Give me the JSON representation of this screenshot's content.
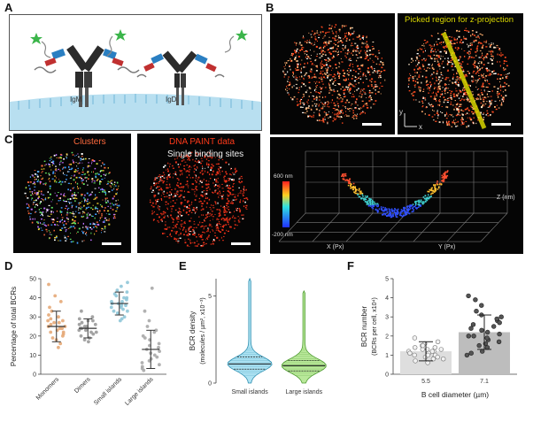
{
  "panels": {
    "a": {
      "letter": "A",
      "labels": {
        "igm": "IgM",
        "igd": "IgD"
      }
    },
    "b": {
      "letter": "B",
      "annotation": "Picked region for z-projection",
      "axes_2d": {
        "y": "y",
        "x": "x"
      },
      "plot3d": {
        "colorbar_top": "600 nm",
        "colorbar_bottom": "-200 nm",
        "z_label": "Z (nm)",
        "x_label": "X (Px)",
        "y_label": "Y (Px)"
      }
    },
    "c": {
      "letter": "C",
      "label_clusters": "Clusters",
      "label_dna": "DNA PAINT data",
      "label_single": "Single binding sites"
    },
    "d": {
      "letter": "D"
    },
    "e": {
      "letter": "E"
    },
    "f": {
      "letter": "F"
    }
  },
  "colors": {
    "orange_dot": "#f0903a",
    "hot_red": "#ff3a1a",
    "yellow_line": "#d8d600",
    "violin_blue": "#aee3f3",
    "violin_green": "#b9e89a",
    "bar_grey": "#c8c8c8"
  },
  "chart_data": [
    {
      "id": "D",
      "type": "scatter",
      "ylabel": "Percentage of total BCRs",
      "ylim": [
        0,
        50
      ],
      "yticks": [
        "0",
        "10",
        "20",
        "30",
        "40",
        "50"
      ],
      "categories": [
        "Monomers",
        "Dimers",
        "Small islands",
        "Large islands"
      ],
      "point_colors": [
        "#e6a877",
        "#9a9a9a",
        "#8fc6d8",
        "#a9a9a9"
      ],
      "means": [
        25,
        24,
        37,
        13
      ],
      "sds": [
        8,
        5,
        6,
        10
      ],
      "points": [
        [
          30,
          28,
          25,
          22,
          35,
          18,
          27,
          24,
          41,
          19,
          23,
          29,
          33,
          16,
          26,
          21,
          38,
          28,
          24,
          47,
          14,
          25,
          31,
          20,
          27,
          22
        ],
        [
          26,
          24,
          21,
          28,
          19,
          23,
          30,
          25,
          18,
          27,
          22,
          29,
          24,
          20,
          26,
          33,
          23,
          25,
          17,
          28,
          22
        ],
        [
          40,
          36,
          33,
          42,
          38,
          30,
          44,
          35,
          39,
          46,
          37,
          34,
          41,
          28,
          36,
          48,
          32,
          38,
          43,
          35,
          37,
          29,
          40,
          33
        ],
        [
          8,
          15,
          22,
          5,
          12,
          28,
          18,
          3,
          10,
          25,
          14,
          20,
          6,
          33,
          9,
          16,
          2,
          11,
          45,
          19,
          7,
          13,
          23,
          4
        ]
      ]
    },
    {
      "id": "E",
      "type": "violin",
      "ylabel": "BCR density",
      "ylabel2": "(molecules / µm², x10⁻³)",
      "ylim": [
        0,
        6
      ],
      "yticks": [
        "0",
        "5"
      ],
      "categories": [
        "Small islands",
        "Large islands"
      ],
      "medians": [
        1.1,
        1.0
      ],
      "quartiles": [
        [
          0.8,
          1.5
        ],
        [
          0.7,
          1.3
        ]
      ],
      "max": [
        6.0,
        5.3
      ]
    },
    {
      "id": "F",
      "type": "bar",
      "ylabel": "BCR number",
      "ylabel2": "(BCRs per cell, x10⁴)",
      "xlabel": "B cell diameter (µm)",
      "ylim": [
        0,
        5
      ],
      "yticks": [
        "0",
        "1",
        "2",
        "3",
        "4",
        "5"
      ],
      "categories": [
        "5.5",
        "7.1"
      ],
      "values": [
        1.2,
        2.2
      ],
      "errors": [
        0.5,
        0.9
      ],
      "points": [
        [
          1.6,
          1.3,
          0.9,
          1.1,
          1.5,
          0.8,
          1.2,
          1.9,
          1.0,
          0.7,
          1.4,
          1.2,
          0.6,
          1.7,
          1.1,
          0.9,
          1.3,
          1.0,
          1.5,
          0.8,
          1.2,
          1.4,
          1.0,
          0.9,
          1.3
        ],
        [
          2.4,
          3.1,
          1.5,
          2.0,
          2.8,
          1.2,
          3.6,
          2.2,
          1.8,
          2.6,
          1.0,
          3.3,
          2.1,
          1.6,
          2.9,
          4.1,
          1.4,
          2.5,
          3.0,
          1.9,
          2.3,
          1.1,
          2.7,
          3.9,
          1.7,
          2.0
        ]
      ]
    }
  ]
}
